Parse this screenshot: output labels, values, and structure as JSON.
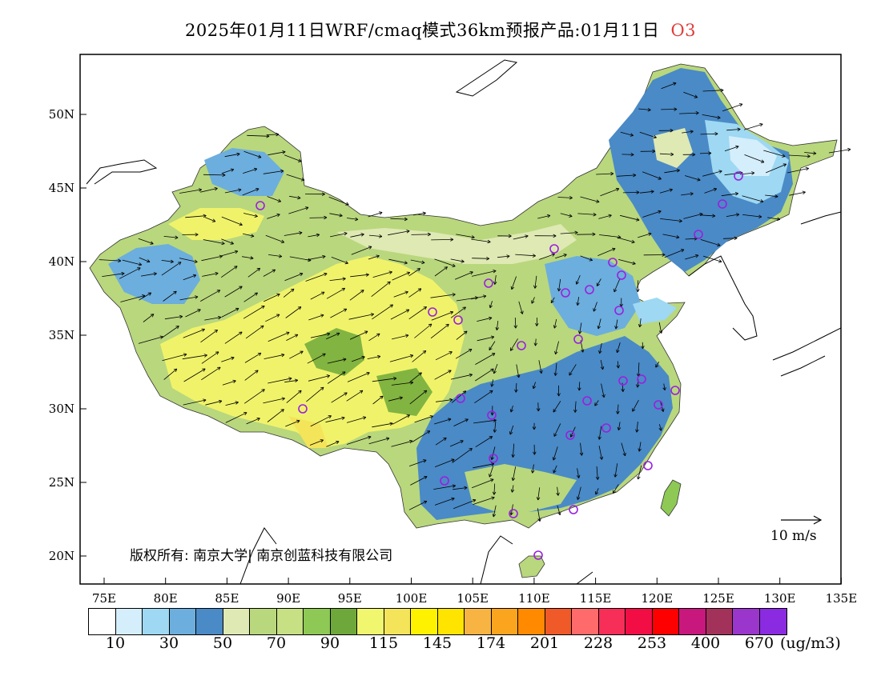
{
  "header": {
    "title": "2025年01月11日WRF/cmaq模式36km预报产品:01月11日",
    "species": "O3",
    "species_color": "#e23b3b"
  },
  "map": {
    "lat_labels": [
      "50N",
      "45N",
      "40N",
      "35N",
      "30N",
      "25N",
      "20N"
    ],
    "lon_labels": [
      "75E",
      "80E",
      "85E",
      "90E",
      "95E",
      "100E",
      "105E",
      "110E",
      "115E",
      "120E",
      "125E",
      "130E",
      "135E"
    ],
    "copyright": "版权所有: 南京大学| 南京创蓝科技有限公司",
    "wind_reference": "10 m/s",
    "colors": {
      "low_blue": "#4a8ac6",
      "mid_blue": "#6caedd",
      "pale_green": "#dfe9b3",
      "green": "#b9d77d",
      "dark_green": "#6fa83a",
      "yellow": "#f0f36a",
      "city_marker": "#9a1fe0"
    }
  },
  "legend": {
    "colors": [
      "#ffffff",
      "#d4eefb",
      "#9ed8f3",
      "#6caedd",
      "#4a8ac6",
      "#dfe9b3",
      "#b9d77d",
      "#c6e083",
      "#8ec955",
      "#6fa83a",
      "#f0f76e",
      "#f4e45a",
      "#fff200",
      "#ffe400",
      "#f8b443",
      "#fba41e",
      "#ff8a00",
      "#f05a28",
      "#ff6b6b",
      "#f72e57",
      "#f20d45",
      "#ff0000",
      "#c8187d",
      "#a3325a",
      "#9b36cd",
      "#8a2be2"
    ],
    "labels": [
      "10",
      "30",
      "50",
      "70",
      "90",
      "115",
      "145",
      "174",
      "201",
      "228",
      "253",
      "400",
      "670"
    ],
    "unit": "(ug/m3)"
  }
}
